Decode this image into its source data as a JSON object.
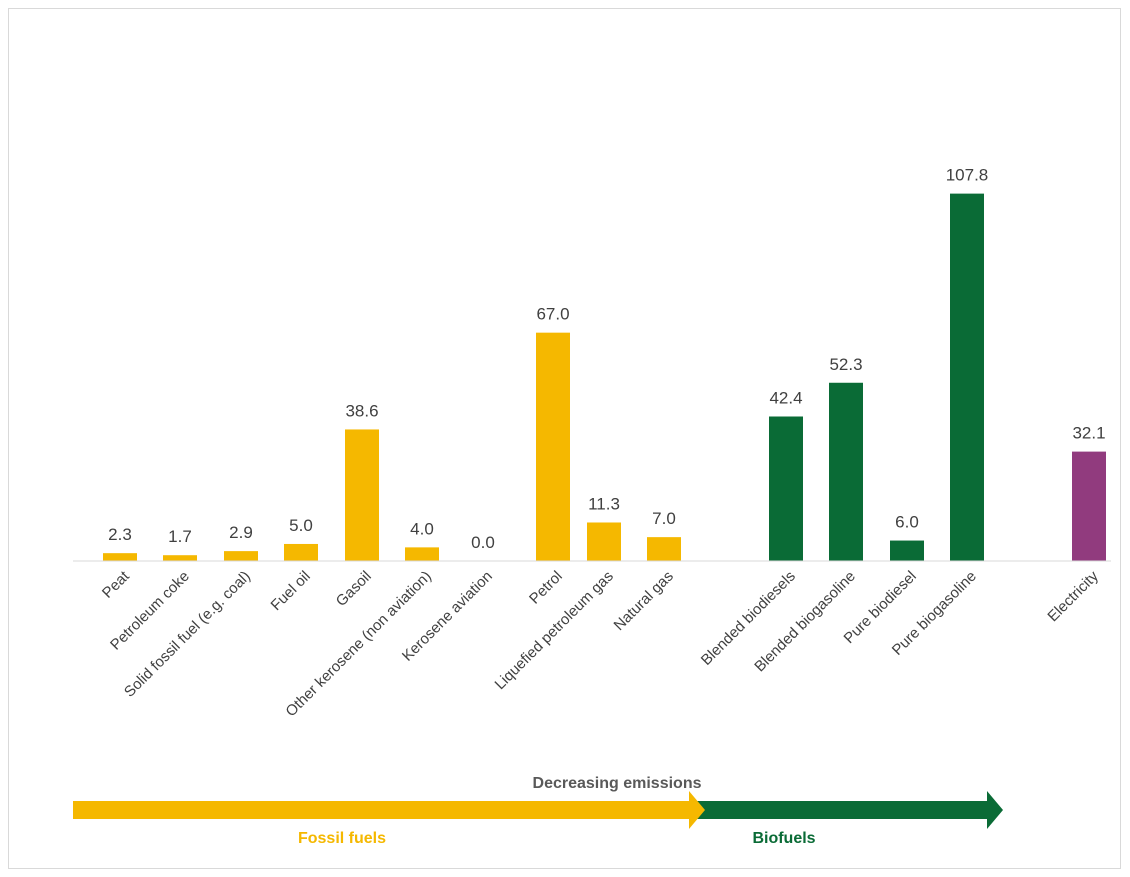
{
  "chart_data": {
    "type": "bar",
    "title": "",
    "xlabel": "",
    "ylabel": "",
    "ylim": [
      0,
      120
    ],
    "grid": false,
    "legend": "none",
    "categories": [
      "Peat",
      "Petroleum coke",
      "Solid fossil fuel (e.g. coal)",
      "Fuel oil",
      "Gasoil",
      "Other kerosene (non aviation)",
      "Kerosene aviation",
      "Petrol",
      "Liquefied petroleum gas",
      "Natural gas",
      "Blended biodiesels",
      "Blended biogasoline",
      "Pure biodiesel",
      "Pure biogasoline",
      "Electricity"
    ],
    "values": [
      2.3,
      1.7,
      2.9,
      5.0,
      38.6,
      4.0,
      0.0,
      67.0,
      11.3,
      7.0,
      42.4,
      52.3,
      6.0,
      107.8,
      32.1
    ],
    "value_labels": [
      "2.3",
      "1.7",
      "2.9",
      "5.0",
      "38.6",
      "4.0",
      "0.0",
      "67.0",
      "11.3",
      "7.0",
      "42.4",
      "52.3",
      "6.0",
      "107.8",
      "32.1"
    ],
    "groups": [
      "fossil",
      "fossil",
      "fossil",
      "fossil",
      "fossil",
      "fossil",
      "fossil",
      "fossil",
      "fossil",
      "fossil",
      "bio",
      "bio",
      "bio",
      "bio",
      "electric"
    ],
    "colors": {
      "fossil": "#f5b800",
      "bio": "#0a6b36",
      "electric": "#913b7e"
    }
  },
  "annotations": {
    "arrow_title": "Decreasing emissions",
    "fossil_label": "Fossil fuels",
    "bio_label": "Biofuels"
  }
}
